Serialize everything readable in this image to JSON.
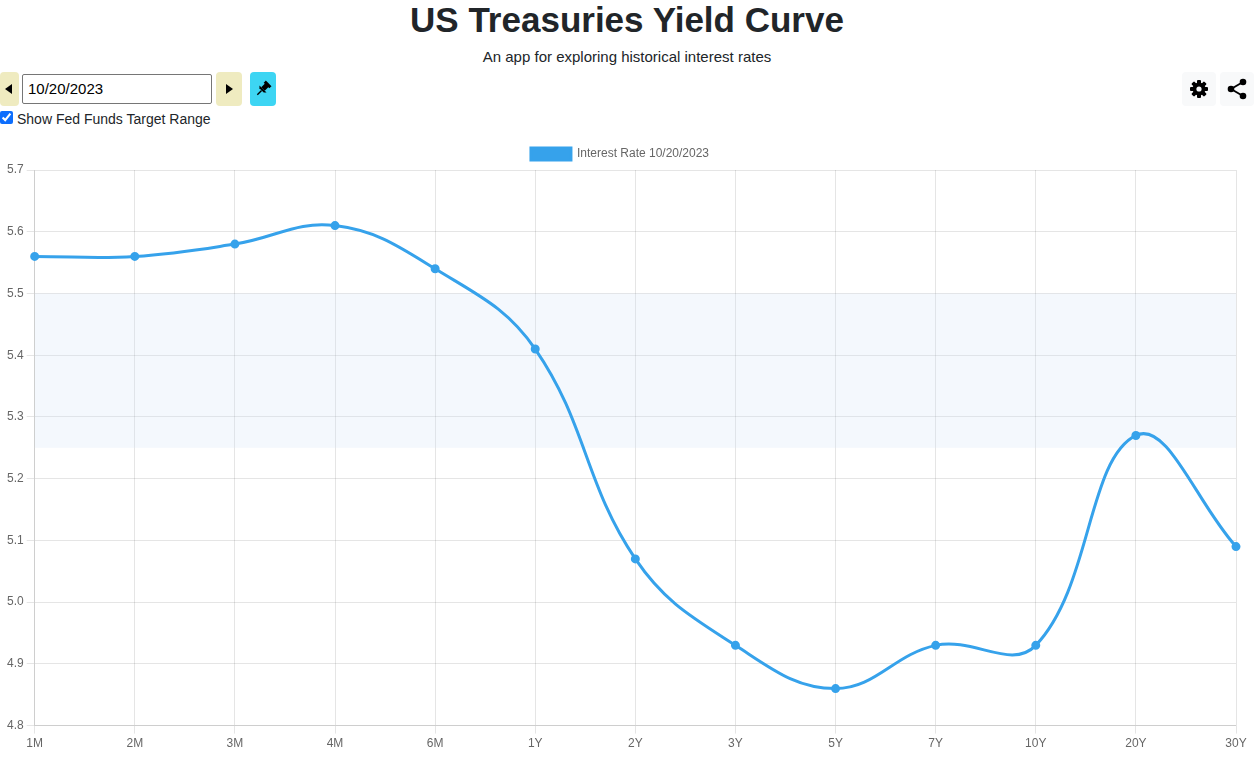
{
  "header": {
    "title": "US Treasuries Yield Curve",
    "subtitle": "An app for exploring historical interest rates"
  },
  "controls": {
    "date": "10/20/2023",
    "checkbox": {
      "label": "Show Fed Funds Target Range",
      "checked": true
    }
  },
  "chart_data": {
    "type": "line",
    "categories": [
      "1M",
      "2M",
      "3M",
      "4M",
      "6M",
      "1Y",
      "2Y",
      "3Y",
      "5Y",
      "7Y",
      "10Y",
      "20Y",
      "30Y"
    ],
    "series": [
      {
        "name": "Interest Rate 10/20/2023",
        "color": "#36a2eb",
        "marker": "circle",
        "line_style": "solid",
        "values": [
          5.56,
          5.56,
          5.58,
          5.61,
          5.54,
          5.41,
          5.07,
          4.93,
          4.86,
          4.93,
          4.93,
          5.27,
          5.09
        ]
      }
    ],
    "ylim": [
      4.8,
      5.7
    ],
    "yticks": [
      4.8,
      4.9,
      {
        "value": 5,
        "label": "5.0"
      },
      5.1,
      5.2,
      5.3,
      5.4,
      5.5,
      5.6,
      5.7
    ],
    "grid": true,
    "legend": "top",
    "fed_funds_target_range": [
      5.25,
      5.5
    ]
  }
}
